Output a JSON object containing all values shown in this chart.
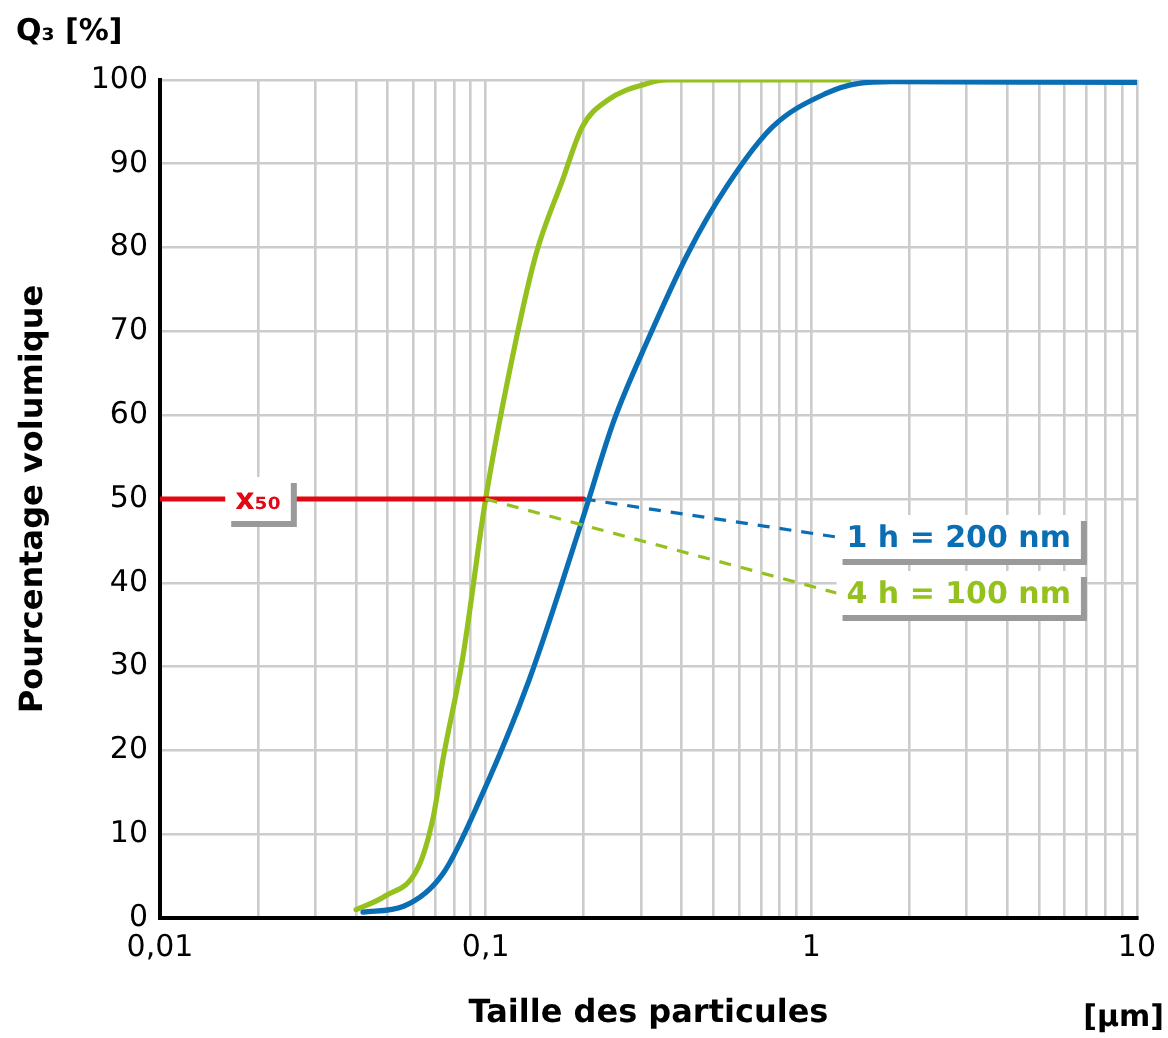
{
  "chart_data": {
    "type": "line",
    "xlabel": "Taille des particules",
    "ylabel": "Pourcentage volumique",
    "log": "x",
    "grid": true,
    "legend": false,
    "marker": "none",
    "line_style": "solid",
    "xlim": [
      0.01,
      10
    ],
    "ylim": [
      0,
      100
    ],
    "xticks": [
      {
        "value": 0.01,
        "label": "0,01"
      },
      {
        "value": 0.02,
        "label": null
      },
      {
        "value": 0.03,
        "label": null
      },
      {
        "value": 0.04,
        "label": null
      },
      {
        "value": 0.05,
        "label": null
      },
      {
        "value": 0.06,
        "label": null
      },
      {
        "value": 0.07,
        "label": null
      },
      {
        "value": 0.08,
        "label": null
      },
      {
        "value": 0.09,
        "label": null
      },
      {
        "value": 0.1,
        "label": "0,1"
      },
      {
        "value": 0.2,
        "label": null
      },
      {
        "value": 0.3,
        "label": null
      },
      {
        "value": 0.4,
        "label": null
      },
      {
        "value": 0.5,
        "label": null
      },
      {
        "value": 0.6,
        "label": null
      },
      {
        "value": 0.7,
        "label": null
      },
      {
        "value": 0.8,
        "label": null
      },
      {
        "value": 0.9,
        "label": null
      },
      1,
      {
        "value": 2,
        "label": null
      },
      {
        "value": 3,
        "label": null
      },
      {
        "value": 4,
        "label": null
      },
      {
        "value": 5,
        "label": null
      },
      {
        "value": 6,
        "label": null
      },
      {
        "value": 7,
        "label": null
      },
      {
        "value": 8,
        "label": null
      },
      {
        "value": 9,
        "label": null
      },
      10
    ],
    "yticks": [
      0,
      10,
      20,
      30,
      40,
      50,
      60,
      70,
      80,
      90,
      100
    ],
    "series": [
      {
        "color": "#e30613",
        "x": [
          0.01,
          0.2
        ],
        "values": [
          50,
          50
        ]
      },
      {
        "color": "#0a6eb4",
        "x": [
          0.042,
          0.056,
          0.074,
          0.098,
          0.136,
          0.198,
          0.248,
          0.315,
          0.418,
          0.55,
          0.76,
          1.11,
          1.4,
          1.77,
          10
        ],
        "values": [
          0.7,
          1.4,
          5.3,
          14.9,
          28.4,
          47.5,
          59.4,
          69,
          79.3,
          87.3,
          94.4,
          98.4,
          99.6,
          99.8,
          99.7
        ]
      },
      {
        "color": "#95c11f",
        "x": [
          0.04,
          0.049,
          0.062,
          0.069,
          0.074,
          0.085,
          0.1,
          0.124,
          0.143,
          0.172,
          0.198,
          0.237,
          0.315,
          0.36,
          1.3
        ],
        "values": [
          1,
          2.6,
          6,
          12,
          19,
          31,
          50,
          69,
          79.3,
          88,
          94.4,
          97.6,
          99.6,
          100,
          100
        ]
      }
    ],
    "annotations": [
      {
        "text": "x₅₀",
        "x": 0.02,
        "y": 50
      },
      {
        "text": "1 h = 200 nm",
        "x": 0.2,
        "y": 50
      },
      {
        "text": "4 h = 100 nm",
        "x": 0.1,
        "y": 50
      },
      "Q₃ [%]",
      "[µm]"
    ]
  }
}
